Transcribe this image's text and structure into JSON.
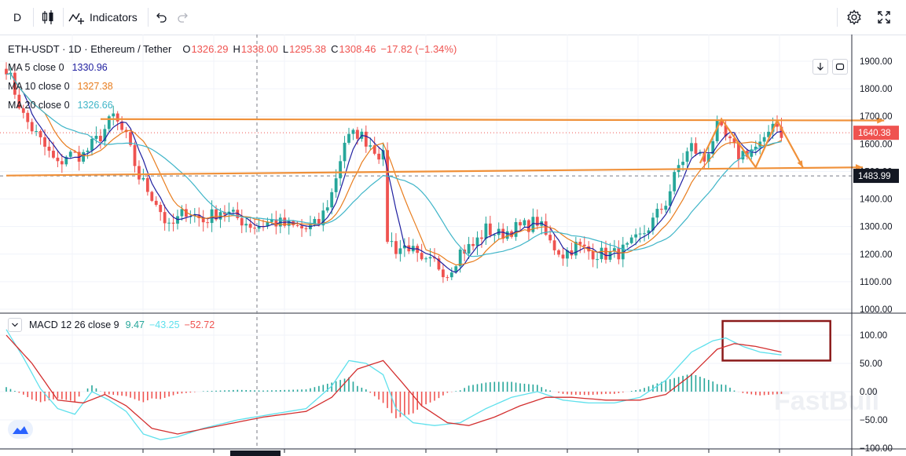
{
  "toolbar": {
    "interval_label": "D",
    "indicators_label": "Indicators"
  },
  "header": {
    "symbol": "ETH-USDT · 1D · Ethereum / Tether",
    "open_label": "O",
    "open_value": "1326.29",
    "high_label": "H",
    "high_value": "1338.00",
    "low_label": "L",
    "low_value": "1295.38",
    "close_label": "C",
    "close_value": "1308.46",
    "change": "−17.82 (−1.34%)"
  },
  "moving_averages": [
    {
      "name": "MA 5 close 0",
      "value": "1330.96",
      "color": "#2020a0"
    },
    {
      "name": "MA 10 close 0",
      "value": "1327.38",
      "color": "#e87d1e"
    },
    {
      "name": "MA 20 close 0",
      "value": "1326.66",
      "color": "#3fb5c8"
    }
  ],
  "macd_legend": {
    "name": "MACD 12 26 close 9",
    "hist": "9.47",
    "macd": "−43.25",
    "signal": "−52.72"
  },
  "colors": {
    "up": "#26a69a",
    "down": "#ef5350",
    "trendline": "#f0913a",
    "ma5": "#2020a0",
    "ma10": "#e87d1e",
    "ma20": "#3fb5c8",
    "macd_line": "#5ee0ec",
    "signal_line": "#d32f2f",
    "highlight_box": "#8b1a1a"
  },
  "icons": [
    "candles-icon",
    "indicators-icon",
    "undo-icon",
    "redo-icon",
    "settings-icon",
    "fullscreen-icon",
    "scroll-down-icon",
    "autoscale-icon",
    "chevron-down-icon",
    "tradingview-logo-icon"
  ],
  "watermark": "FastBull",
  "chart_data": [
    {
      "type": "candlestick",
      "title": "ETH-USDT · 1D · Ethereum / Tether",
      "ylim": [
        1000,
        1950
      ],
      "y_ticks": [
        "1900.00",
        "1800.00",
        "1700.00",
        "1600.00",
        "1500.00",
        "1400.00",
        "1300.00",
        "1200.00",
        "1100.00",
        "1000.00"
      ],
      "price_labels": {
        "last": "1640.38",
        "crosshair": "1483.99"
      },
      "anchors": [
        {
          "i": 0,
          "p": 1880
        },
        {
          "i": 4,
          "p": 1700
        },
        {
          "i": 8,
          "p": 1610
        },
        {
          "i": 12,
          "p": 1520
        },
        {
          "i": 14,
          "p": 1560
        },
        {
          "i": 18,
          "p": 1560
        },
        {
          "i": 22,
          "p": 1630
        },
        {
          "i": 25,
          "p": 1700
        },
        {
          "i": 28,
          "p": 1620
        },
        {
          "i": 31,
          "p": 1480
        },
        {
          "i": 35,
          "p": 1390
        },
        {
          "i": 38,
          "p": 1290
        },
        {
          "i": 42,
          "p": 1360
        },
        {
          "i": 46,
          "p": 1320
        },
        {
          "i": 50,
          "p": 1360
        },
        {
          "i": 54,
          "p": 1330
        },
        {
          "i": 58,
          "p": 1300
        },
        {
          "i": 62,
          "p": 1320
        },
        {
          "i": 66,
          "p": 1300
        },
        {
          "i": 70,
          "p": 1290
        },
        {
          "i": 73,
          "p": 1310
        },
        {
          "i": 76,
          "p": 1420
        },
        {
          "i": 79,
          "p": 1610
        },
        {
          "i": 82,
          "p": 1640
        },
        {
          "i": 85,
          "p": 1600
        },
        {
          "i": 88,
          "p": 1550
        },
        {
          "i": 89,
          "p": 1260
        },
        {
          "i": 91,
          "p": 1220
        },
        {
          "i": 94,
          "p": 1230
        },
        {
          "i": 97,
          "p": 1160
        },
        {
          "i": 100,
          "p": 1170
        },
        {
          "i": 103,
          "p": 1130
        },
        {
          "i": 106,
          "p": 1210
        },
        {
          "i": 109,
          "p": 1230
        },
        {
          "i": 112,
          "p": 1290
        },
        {
          "i": 115,
          "p": 1270
        },
        {
          "i": 118,
          "p": 1290
        },
        {
          "i": 121,
          "p": 1300
        },
        {
          "i": 124,
          "p": 1320
        },
        {
          "i": 127,
          "p": 1240
        },
        {
          "i": 130,
          "p": 1200
        },
        {
          "i": 133,
          "p": 1230
        },
        {
          "i": 136,
          "p": 1210
        },
        {
          "i": 139,
          "p": 1200
        },
        {
          "i": 142,
          "p": 1200
        },
        {
          "i": 145,
          "p": 1220
        },
        {
          "i": 148,
          "p": 1260
        },
        {
          "i": 151,
          "p": 1320
        },
        {
          "i": 154,
          "p": 1390
        },
        {
          "i": 157,
          "p": 1520
        },
        {
          "i": 160,
          "p": 1590
        },
        {
          "i": 163,
          "p": 1540
        },
        {
          "i": 166,
          "p": 1660
        },
        {
          "i": 168,
          "p": 1620
        },
        {
          "i": 171,
          "p": 1560
        },
        {
          "i": 174,
          "p": 1580
        },
        {
          "i": 177,
          "p": 1600
        },
        {
          "i": 179,
          "p": 1690
        },
        {
          "i": 181,
          "p": 1640
        }
      ],
      "trendlines": [
        {
          "from": [
            22,
            1690
          ],
          "to": [
            205,
            1685
          ]
        },
        {
          "from": [
            0,
            1485
          ],
          "to": [
            200,
            1515
          ]
        }
      ],
      "pattern_path": [
        [
          162,
          1530
        ],
        [
          167,
          1690
        ],
        [
          175,
          1515
        ],
        [
          180,
          1685
        ],
        [
          186,
          1515
        ]
      ]
    },
    {
      "type": "line",
      "title": "MACD 12 26 close 9",
      "ylim": [
        -100,
        125
      ],
      "y_ticks": [
        "100.00",
        "50.00",
        "0.00",
        "−50.00",
        "−100.00"
      ],
      "macd_anchors": [
        {
          "i": 0,
          "v": 110
        },
        {
          "i": 4,
          "v": 60
        },
        {
          "i": 8,
          "v": 5
        },
        {
          "i": 12,
          "v": -30
        },
        {
          "i": 16,
          "v": -40
        },
        {
          "i": 20,
          "v": 0
        },
        {
          "i": 24,
          "v": -15
        },
        {
          "i": 28,
          "v": -35
        },
        {
          "i": 32,
          "v": -75
        },
        {
          "i": 36,
          "v": -85
        },
        {
          "i": 40,
          "v": -80
        },
        {
          "i": 46,
          "v": -65
        },
        {
          "i": 54,
          "v": -50
        },
        {
          "i": 62,
          "v": -40
        },
        {
          "i": 70,
          "v": -30
        },
        {
          "i": 76,
          "v": 10
        },
        {
          "i": 80,
          "v": 55
        },
        {
          "i": 84,
          "v": 50
        },
        {
          "i": 88,
          "v": 30
        },
        {
          "i": 91,
          "v": -30
        },
        {
          "i": 95,
          "v": -55
        },
        {
          "i": 100,
          "v": -60
        },
        {
          "i": 106,
          "v": -55
        },
        {
          "i": 112,
          "v": -30
        },
        {
          "i": 118,
          "v": -10
        },
        {
          "i": 124,
          "v": 0
        },
        {
          "i": 130,
          "v": -15
        },
        {
          "i": 136,
          "v": -20
        },
        {
          "i": 142,
          "v": -20
        },
        {
          "i": 148,
          "v": -10
        },
        {
          "i": 154,
          "v": 20
        },
        {
          "i": 160,
          "v": 70
        },
        {
          "i": 165,
          "v": 90
        },
        {
          "i": 168,
          "v": 95
        },
        {
          "i": 172,
          "v": 80
        },
        {
          "i": 176,
          "v": 70
        },
        {
          "i": 181,
          "v": 65
        }
      ],
      "signal_anchors": [
        {
          "i": 0,
          "v": 100
        },
        {
          "i": 6,
          "v": 50
        },
        {
          "i": 12,
          "v": -15
        },
        {
          "i": 18,
          "v": -20
        },
        {
          "i": 23,
          "v": -5
        },
        {
          "i": 28,
          "v": -25
        },
        {
          "i": 34,
          "v": -65
        },
        {
          "i": 40,
          "v": -75
        },
        {
          "i": 50,
          "v": -60
        },
        {
          "i": 60,
          "v": -45
        },
        {
          "i": 70,
          "v": -35
        },
        {
          "i": 76,
          "v": -10
        },
        {
          "i": 82,
          "v": 40
        },
        {
          "i": 88,
          "v": 55
        },
        {
          "i": 92,
          "v": 20
        },
        {
          "i": 97,
          "v": -25
        },
        {
          "i": 103,
          "v": -55
        },
        {
          "i": 108,
          "v": -60
        },
        {
          "i": 114,
          "v": -45
        },
        {
          "i": 120,
          "v": -25
        },
        {
          "i": 126,
          "v": -10
        },
        {
          "i": 132,
          "v": -10
        },
        {
          "i": 140,
          "v": -15
        },
        {
          "i": 148,
          "v": -15
        },
        {
          "i": 154,
          "v": -5
        },
        {
          "i": 160,
          "v": 30
        },
        {
          "i": 166,
          "v": 75
        },
        {
          "i": 170,
          "v": 85
        },
        {
          "i": 175,
          "v": 80
        },
        {
          "i": 181,
          "v": 70
        }
      ],
      "highlight_box": {
        "i_from": 168,
        "i_to": 186,
        "v_from": 55,
        "v_to": 125
      }
    }
  ]
}
